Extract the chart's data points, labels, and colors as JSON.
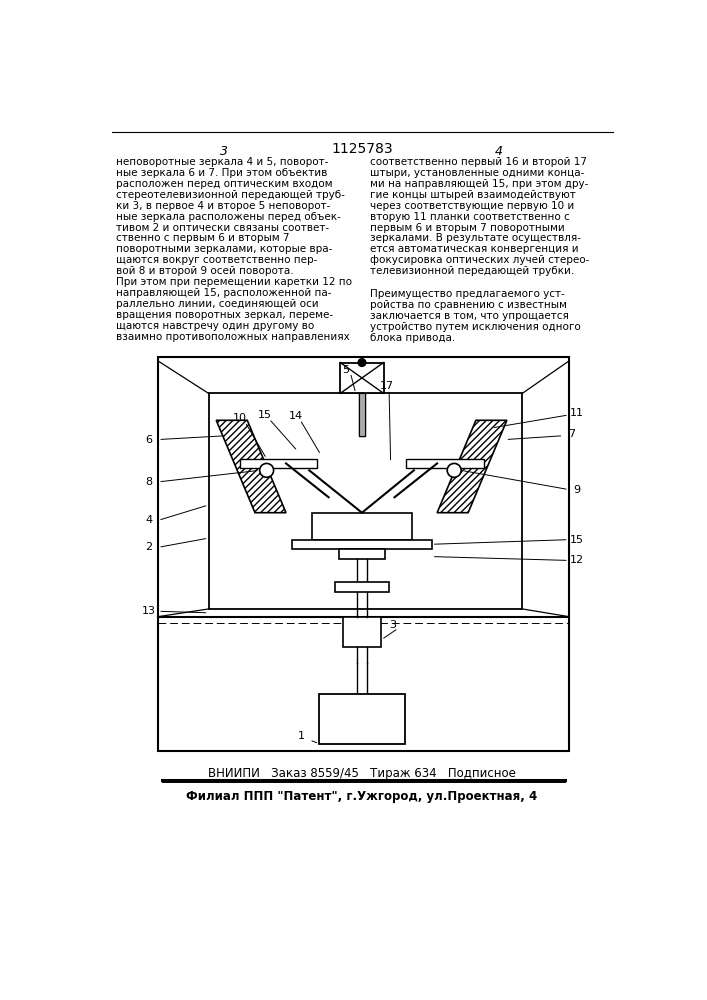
{
  "page_number_left": "3",
  "patent_number": "1125783",
  "page_number_right": "4",
  "col1_text": "неповоротные зеркала 4 и 5, поворот-\nные зеркала 6 и 7. При этом объектив\nрасположен перед оптическим входом\nстереотелевизионной передающей труб-\nки 3, в первое 4 и второе 5 неповорот-\nные зеркала расположены перед объек-\nтивом 2 и оптически связаны соответ-\nственно с первым 6 и вторым 7\nповоротными зеркалами, которые вра-\nщаются вокруг соответственно пер-\nвой 8 и второй 9 осей поворота.\nПри этом при перемещении каретки 12 по\nнаправляющей 15, расположенной па-\nраллельно линии, соединяющей оси\nвращения поворотных зеркал, переме-\nщаются навстречу один другому во\nвзаимно противоположных направлениях",
  "col2_text": "соответственно первый 16 и второй 17\nштыри, установленные одними конца-\nми на направляющей 15, при этом дру-\nгие концы штырей взаимодействуют\nчерез соответствующие первую 10 и\nвторую 11 планки соответственно с\nпервым 6 и вторым 7 поворотными\nзеркалами. В результате осуществля-\nется автоматическая конвергенция и\nфокусировка оптических лучей стерео-\nтелевизионной передающей трубки.",
  "advantage_text": "Преимущество предлагаемого уст-\nройства по сравнению с известным\nзаключается в том, что упрощается\nустройство путем исключения одного\nблока привода.",
  "footer_line1": "ВНИИПИ   Заказ 8559/45   Тираж 634   Подписное",
  "footer_line2": "Филиал ППП \"Патент\", г.Ужгород, ул.Проектная, 4",
  "bg_color": "#ffffff",
  "text_color": "#000000"
}
